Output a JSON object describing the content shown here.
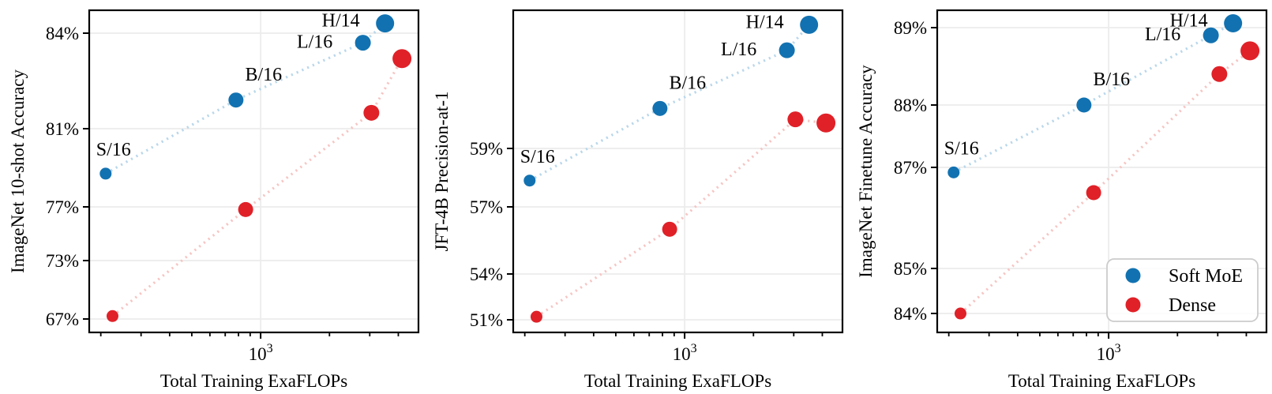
{
  "colors": {
    "soft_moe": "#1272b1",
    "dense": "#e02128",
    "soft_moe_line": "#b9d7eb",
    "dense_line": "#f6c5c3",
    "grid": "#ececec",
    "frame": "#000000",
    "text": "#000000",
    "legend_border": "#cccccc",
    "legend_bg": "rgba(255,255,255,0.85)"
  },
  "chart_data": [
    {
      "type": "scatter",
      "title": "",
      "xlabel": "Total Training ExaFLOPs",
      "ylabel": "ImageNet 10-shot Accuracy",
      "x_scale": "log",
      "y_scale": "nonlinear-accuracy",
      "xlim": [
        178,
        4900
      ],
      "grid": true,
      "x_major_tick": {
        "value": 1000,
        "mantissa": "10",
        "exponent": "3",
        "label": "10³"
      },
      "x_minor_ticks": [
        200,
        300,
        400,
        500,
        600,
        700,
        800,
        900,
        2000,
        3000,
        4000
      ],
      "y_ticks": [
        {
          "value": 84,
          "label": "84%"
        },
        {
          "value": 81,
          "label": "81%"
        },
        {
          "value": 77,
          "label": "77%"
        },
        {
          "value": 73,
          "label": "73%"
        },
        {
          "value": 67,
          "label": "67%"
        }
      ],
      "y_scale_anchors": [
        [
          84.7,
          0.0
        ],
        [
          84,
          0.0711
        ],
        [
          81,
          0.3676
        ],
        [
          77,
          0.6103
        ],
        [
          73,
          0.777
        ],
        [
          67,
          0.9583
        ],
        [
          65.6,
          1.0
        ]
      ],
      "series": [
        {
          "name": "Soft MoE",
          "color": "soft_moe",
          "line_color": "soft_moe_line",
          "annotated": true,
          "points": [
            {
              "label": "S/16",
              "x": 210,
              "y": 78.7,
              "r": 7.5
            },
            {
              "label": "B/16",
              "x": 780,
              "y": 81.9,
              "r": 9.5
            },
            {
              "label": "L/16",
              "x": 2800,
              "y": 83.7,
              "r": 10
            },
            {
              "label": "H/14",
              "x": 3500,
              "y": 84.3,
              "r": 11.5
            }
          ]
        },
        {
          "name": "Dense",
          "color": "dense",
          "line_color": "dense_line",
          "annotated": false,
          "points": [
            {
              "label": "S/16",
              "x": 225,
              "y": 67.3,
              "r": 7.5
            },
            {
              "label": "B/16",
              "x": 860,
              "y": 76.8,
              "r": 9.5
            },
            {
              "label": "L/16",
              "x": 3050,
              "y": 81.5,
              "r": 10
            },
            {
              "label": "H/14",
              "x": 4150,
              "y": 83.2,
              "r": 12
            }
          ]
        }
      ],
      "legend": {
        "show": false
      }
    },
    {
      "type": "scatter",
      "title": "",
      "xlabel": "Total Training ExaFLOPs",
      "ylabel": "JFT-4B Precision-at-1",
      "x_scale": "log",
      "y_scale": "nonlinear-accuracy",
      "xlim": [
        178,
        4900
      ],
      "grid": true,
      "x_major_tick": {
        "value": 1000,
        "mantissa": "10",
        "exponent": "3",
        "label": "10³"
      },
      "x_minor_ticks": [
        200,
        300,
        400,
        500,
        600,
        700,
        800,
        900,
        2000,
        3000,
        4000
      ],
      "y_ticks": [
        {
          "value": 59,
          "label": "59%"
        },
        {
          "value": 57,
          "label": "57%"
        },
        {
          "value": 54,
          "label": "54%"
        },
        {
          "value": 51,
          "label": "51%"
        }
      ],
      "y_scale_anchors": [
        [
          62.8,
          0.0
        ],
        [
          59,
          0.4289
        ],
        [
          57,
          0.6103
        ],
        [
          54,
          0.8186
        ],
        [
          51,
          0.9608
        ],
        [
          50.2,
          1.0
        ]
      ],
      "series": [
        {
          "name": "Soft MoE",
          "color": "soft_moe",
          "line_color": "soft_moe_line",
          "annotated": true,
          "points": [
            {
              "label": "S/16",
              "x": 210,
              "y": 57.9,
              "r": 7.5
            },
            {
              "label": "B/16",
              "x": 780,
              "y": 60.1,
              "r": 9.5
            },
            {
              "label": "L/16",
              "x": 2800,
              "y": 61.7,
              "r": 10
            },
            {
              "label": "H/14",
              "x": 3500,
              "y": 62.4,
              "r": 11.5
            }
          ]
        },
        {
          "name": "Dense",
          "color": "dense",
          "line_color": "dense_line",
          "annotated": false,
          "points": [
            {
              "label": "S/16",
              "x": 225,
              "y": 51.2,
              "r": 7.5
            },
            {
              "label": "B/16",
              "x": 860,
              "y": 56.0,
              "r": 9.5
            },
            {
              "label": "L/16",
              "x": 3050,
              "y": 59.8,
              "r": 10
            },
            {
              "label": "H/14",
              "x": 4150,
              "y": 59.7,
              "r": 12
            }
          ]
        }
      ],
      "legend": {
        "show": false
      }
    },
    {
      "type": "scatter",
      "title": "",
      "xlabel": "Total Training ExaFLOPs",
      "ylabel": "ImageNet Finetune Accuracy",
      "x_scale": "log",
      "y_scale": "nonlinear-accuracy",
      "xlim": [
        178,
        4900
      ],
      "grid": true,
      "x_major_tick": {
        "value": 1000,
        "mantissa": "10",
        "exponent": "3",
        "label": "10³"
      },
      "x_minor_ticks": [
        200,
        300,
        400,
        500,
        600,
        700,
        800,
        900,
        2000,
        3000,
        4000
      ],
      "y_ticks": [
        {
          "value": 89,
          "label": "89%"
        },
        {
          "value": 88,
          "label": "88%"
        },
        {
          "value": 87,
          "label": "87%"
        },
        {
          "value": 85,
          "label": "85%"
        },
        {
          "value": 84,
          "label": "84%"
        }
      ],
      "y_scale_anchors": [
        [
          89.2,
          0.0
        ],
        [
          89,
          0.0539
        ],
        [
          88,
          0.2941
        ],
        [
          87,
          0.4877
        ],
        [
          85,
          0.8015
        ],
        [
          84,
          0.9412
        ],
        [
          83.6,
          1.0
        ]
      ],
      "series": [
        {
          "name": "Soft MoE",
          "color": "soft_moe",
          "line_color": "soft_moe_line",
          "annotated": true,
          "points": [
            {
              "label": "S/16",
              "x": 210,
              "y": 86.9,
              "r": 7.5
            },
            {
              "label": "B/16",
              "x": 780,
              "y": 88.0,
              "r": 9.5
            },
            {
              "label": "L/16",
              "x": 2800,
              "y": 88.9,
              "r": 10
            },
            {
              "label": "H/14",
              "x": 3500,
              "y": 89.05,
              "r": 11.5
            }
          ]
        },
        {
          "name": "Dense",
          "color": "dense",
          "line_color": "dense_line",
          "annotated": false,
          "points": [
            {
              "label": "S/16",
              "x": 225,
              "y": 84.0,
              "r": 7.5
            },
            {
              "label": "B/16",
              "x": 860,
              "y": 86.5,
              "r": 9.5
            },
            {
              "label": "L/16",
              "x": 3050,
              "y": 88.4,
              "r": 10
            },
            {
              "label": "H/14",
              "x": 4150,
              "y": 88.7,
              "r": 12
            }
          ]
        }
      ],
      "legend": {
        "show": true,
        "position": "lower right",
        "items": [
          {
            "label": "Soft MoE",
            "color": "soft_moe"
          },
          {
            "label": "Dense",
            "color": "dense"
          }
        ]
      }
    }
  ]
}
